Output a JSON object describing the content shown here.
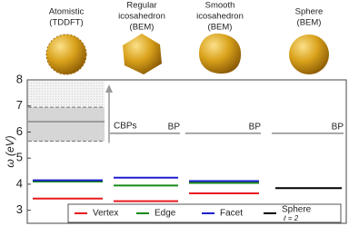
{
  "chart_data": {
    "type": "levels",
    "ylabel": "ω (eV)",
    "categories": [
      [
        "Atomistic",
        "(TDDFT)"
      ],
      [
        "Regular",
        "icosahedron",
        "(BEM)"
      ],
      [
        "Smooth",
        "icosahedron",
        "(BEM)"
      ],
      [
        "Sphere",
        "(BEM)"
      ]
    ],
    "ylim": [
      2.5,
      8
    ],
    "yticks": [
      3,
      4,
      5,
      6,
      7,
      8
    ],
    "series": [
      {
        "name": "Vertex",
        "color": "#e8191c",
        "values": [
          3.45,
          3.35,
          3.65,
          null
        ]
      },
      {
        "name": "Edge",
        "color": "#1a8a1a",
        "values": [
          4.1,
          3.95,
          4.05,
          null
        ]
      },
      {
        "name": "Facet",
        "color": "#1f1fcf",
        "values": [
          4.15,
          4.25,
          4.12,
          null
        ]
      },
      {
        "name": "Sphere",
        "note": "ℓ = 2",
        "color": "#000000",
        "values": [
          null,
          null,
          null,
          3.85
        ]
      }
    ],
    "bp": {
      "label": "BP",
      "color": "#8c8c8c",
      "values": [
        null,
        5.95,
        5.95,
        5.95
      ]
    },
    "cbp": {
      "label": "CBPs",
      "low": 5.65,
      "high": 6.95,
      "center": 6.4
    }
  }
}
